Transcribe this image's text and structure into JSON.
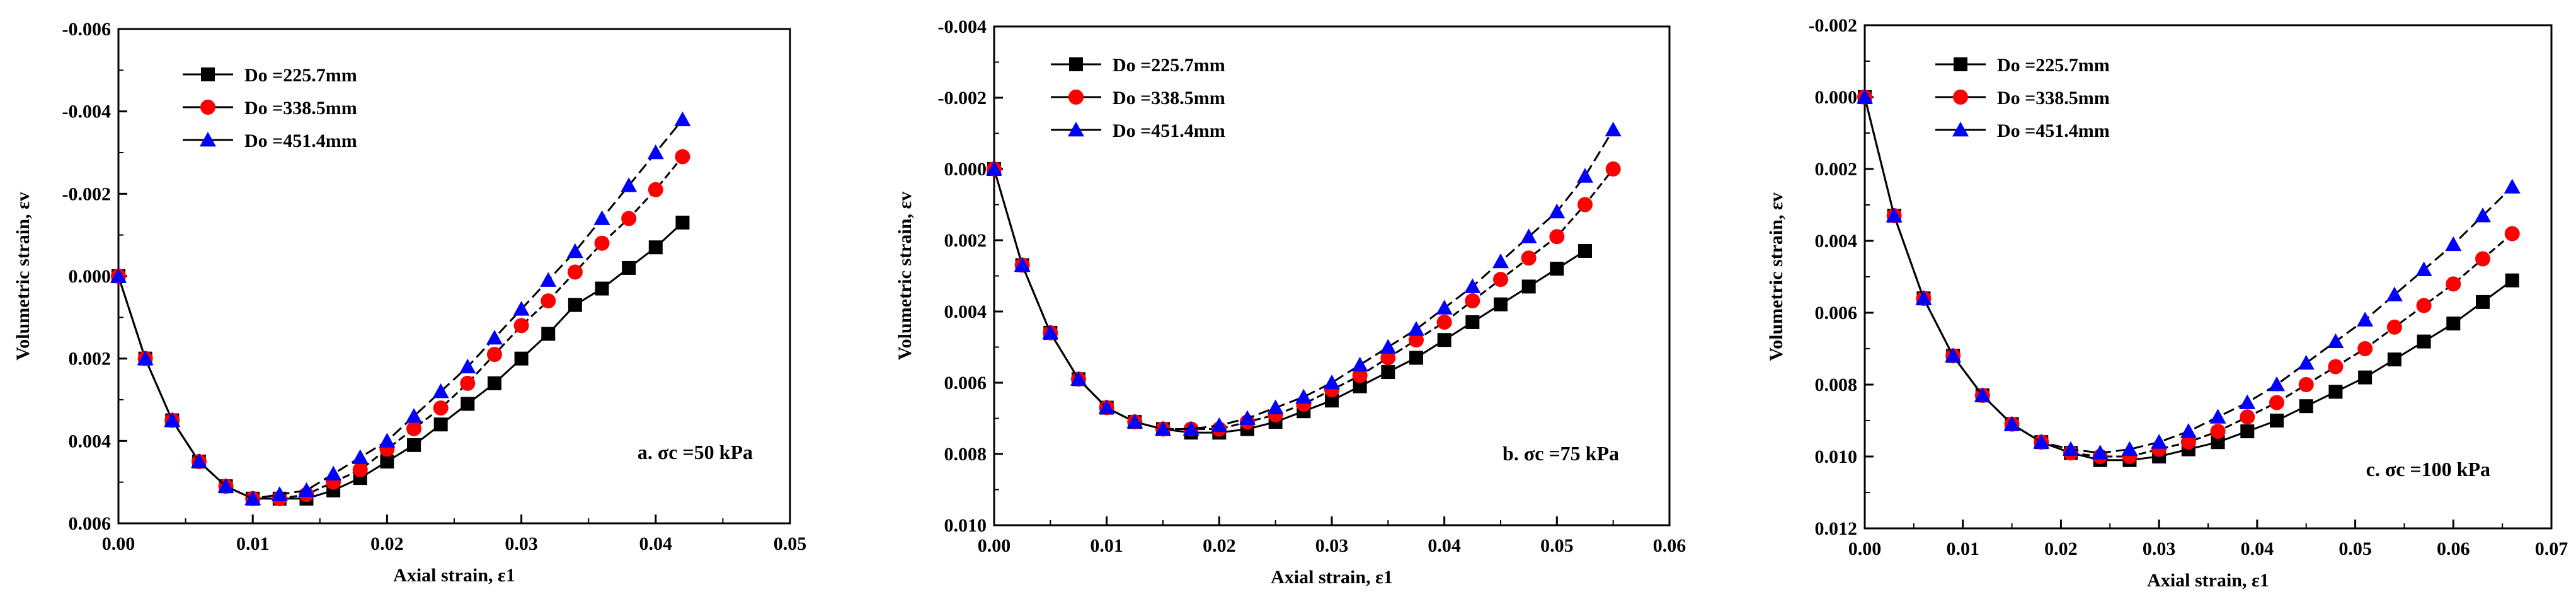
{
  "chart_data": [
    {
      "type": "line",
      "xlabel": "Axial strain, ε1",
      "ylabel": "Volumetric strain, εv",
      "xlim": [
        0,
        0.05
      ],
      "ylim": [
        -0.006,
        0.006
      ],
      "y_inverted": true,
      "xticks": [
        "0.00",
        "0.01",
        "0.02",
        "0.03",
        "0.04",
        "0.05"
      ],
      "xtick_values": [
        0,
        0.01,
        0.02,
        0.03,
        0.04,
        0.05
      ],
      "yticks": [
        "-0.006",
        "-0.004",
        "-0.002",
        "0.000",
        "0.002",
        "0.004",
        "0.006"
      ],
      "ytick_values": [
        -0.006,
        -0.004,
        -0.002,
        0,
        0.002,
        0.004,
        0.006
      ],
      "annotation": "a. σc =50 kPa",
      "legend_position": "top-left",
      "series": [
        {
          "name": "Do =225.7mm",
          "marker": "square",
          "color": "#000000",
          "x": [
            0,
            0.002,
            0.004,
            0.006,
            0.008,
            0.01,
            0.012,
            0.014,
            0.016,
            0.018,
            0.02,
            0.022,
            0.024,
            0.026,
            0.028,
            0.03,
            0.032,
            0.034,
            0.036,
            0.038,
            0.04,
            0.042
          ],
          "y": [
            0,
            0.002,
            0.0035,
            0.0045,
            0.0051,
            0.0054,
            0.0054,
            0.0054,
            0.0052,
            0.0049,
            0.0045,
            0.0041,
            0.0036,
            0.0031,
            0.0026,
            0.002,
            0.0014,
            0.0007,
            0.0003,
            -0.0002,
            -0.0007,
            -0.0013
          ]
        },
        {
          "name": "Do =338.5mm",
          "marker": "circle",
          "color": "#ff0000",
          "x": [
            0,
            0.002,
            0.004,
            0.006,
            0.008,
            0.01,
            0.012,
            0.014,
            0.016,
            0.018,
            0.02,
            0.022,
            0.024,
            0.026,
            0.028,
            0.03,
            0.032,
            0.034,
            0.036,
            0.038,
            0.04,
            0.042
          ],
          "y": [
            0,
            0.002,
            0.0035,
            0.0045,
            0.0051,
            0.0054,
            0.0054,
            0.0053,
            0.005,
            0.0047,
            0.0042,
            0.0037,
            0.0032,
            0.0026,
            0.0019,
            0.0012,
            0.0006,
            -0.0001,
            -0.0008,
            -0.0014,
            -0.0021,
            -0.0029
          ]
        },
        {
          "name": "Do =451.4mm",
          "marker": "triangle",
          "color": "#0000ff",
          "x": [
            0,
            0.002,
            0.004,
            0.006,
            0.008,
            0.01,
            0.012,
            0.014,
            0.016,
            0.018,
            0.02,
            0.022,
            0.024,
            0.026,
            0.028,
            0.03,
            0.032,
            0.034,
            0.036,
            0.038,
            0.04,
            0.042
          ],
          "y": [
            0,
            0.002,
            0.0035,
            0.0045,
            0.0051,
            0.0054,
            0.0053,
            0.0052,
            0.0048,
            0.0044,
            0.004,
            0.0034,
            0.0028,
            0.0022,
            0.0015,
            0.0008,
            0.0001,
            -0.0006,
            -0.0014,
            -0.0022,
            -0.003,
            -0.0038
          ]
        }
      ]
    },
    {
      "type": "line",
      "xlabel": "Axial strain, ε1",
      "ylabel": "Volumetric strain, εv",
      "xlim": [
        0,
        0.06
      ],
      "ylim": [
        -0.004,
        0.01
      ],
      "y_inverted": true,
      "xticks": [
        "0.00",
        "0.01",
        "0.02",
        "0.03",
        "0.04",
        "0.05",
        "0.06"
      ],
      "xtick_values": [
        0,
        0.01,
        0.02,
        0.03,
        0.04,
        0.05,
        0.06
      ],
      "yticks": [
        "-0.004",
        "-0.002",
        "0.000",
        "0.002",
        "0.004",
        "0.006",
        "0.008",
        "0.010"
      ],
      "ytick_values": [
        -0.004,
        -0.002,
        0,
        0.002,
        0.004,
        0.006,
        0.008,
        0.01
      ],
      "annotation": "b. σc =75 kPa",
      "legend_position": "top-left",
      "series": [
        {
          "name": "Do =225.7mm",
          "marker": "square",
          "color": "#000000",
          "x": [
            0,
            0.0025,
            0.005,
            0.0075,
            0.01,
            0.0125,
            0.015,
            0.0175,
            0.02,
            0.0225,
            0.025,
            0.0275,
            0.03,
            0.0325,
            0.035,
            0.0375,
            0.04,
            0.0425,
            0.045,
            0.0475,
            0.05,
            0.0525
          ],
          "y": [
            0,
            0.0027,
            0.0046,
            0.0059,
            0.0067,
            0.0071,
            0.0073,
            0.0074,
            0.0074,
            0.0073,
            0.0071,
            0.0068,
            0.0065,
            0.0061,
            0.0057,
            0.0053,
            0.0048,
            0.0043,
            0.0038,
            0.0033,
            0.0028,
            0.0023
          ]
        },
        {
          "name": "Do =338.5mm",
          "marker": "circle",
          "color": "#ff0000",
          "x": [
            0,
            0.0025,
            0.005,
            0.0075,
            0.01,
            0.0125,
            0.015,
            0.0175,
            0.02,
            0.0225,
            0.025,
            0.0275,
            0.03,
            0.0325,
            0.035,
            0.0375,
            0.04,
            0.0425,
            0.045,
            0.0475,
            0.05,
            0.0525,
            0.055
          ],
          "y": [
            0,
            0.0027,
            0.0046,
            0.0059,
            0.0067,
            0.0071,
            0.0073,
            0.0073,
            0.0073,
            0.0071,
            0.0069,
            0.0066,
            0.0062,
            0.0058,
            0.0053,
            0.0048,
            0.0043,
            0.0037,
            0.0031,
            0.0025,
            0.0019,
            0.001,
            0.0
          ]
        },
        {
          "name": "Do =451.4mm",
          "marker": "triangle",
          "color": "#0000ff",
          "x": [
            0,
            0.0025,
            0.005,
            0.0075,
            0.01,
            0.0125,
            0.015,
            0.0175,
            0.02,
            0.0225,
            0.025,
            0.0275,
            0.03,
            0.0325,
            0.035,
            0.0375,
            0.04,
            0.0425,
            0.045,
            0.0475,
            0.05,
            0.0525,
            0.055
          ],
          "y": [
            0,
            0.0027,
            0.0046,
            0.0059,
            0.0067,
            0.0071,
            0.0073,
            0.0073,
            0.0072,
            0.007,
            0.0067,
            0.0064,
            0.006,
            0.0055,
            0.005,
            0.0045,
            0.0039,
            0.0033,
            0.0026,
            0.0019,
            0.0012,
            0.0002,
            -0.0011
          ]
        }
      ]
    },
    {
      "type": "line",
      "xlabel": "Axial strain, ε1",
      "ylabel": "Volumetric strain, εv",
      "xlim": [
        0,
        0.07
      ],
      "ylim": [
        -0.002,
        0.012
      ],
      "y_inverted": true,
      "xticks": [
        "0.00",
        "0.01",
        "0.02",
        "0.03",
        "0.04",
        "0.05",
        "0.06",
        "0.07"
      ],
      "xtick_values": [
        0,
        0.01,
        0.02,
        0.03,
        0.04,
        0.05,
        0.06,
        0.07
      ],
      "yticks": [
        "-0.002",
        "0.000",
        "0.002",
        "0.004",
        "0.006",
        "0.008",
        "0.010",
        "0.012"
      ],
      "ytick_values": [
        -0.002,
        0,
        0.002,
        0.004,
        0.006,
        0.008,
        0.01,
        0.012
      ],
      "annotation": "c. σc =100 kPa",
      "legend_position": "top-left",
      "series": [
        {
          "name": "Do =225.7mm",
          "marker": "square",
          "color": "#000000",
          "x": [
            0,
            0.003,
            0.006,
            0.009,
            0.012,
            0.015,
            0.018,
            0.021,
            0.024,
            0.027,
            0.03,
            0.033,
            0.036,
            0.039,
            0.042,
            0.045,
            0.048,
            0.051,
            0.054,
            0.057,
            0.06,
            0.063,
            0.066
          ],
          "y": [
            0,
            0.0033,
            0.0056,
            0.0072,
            0.0083,
            0.0091,
            0.0096,
            0.0099,
            0.0101,
            0.0101,
            0.01,
            0.0098,
            0.0096,
            0.0093,
            0.009,
            0.0086,
            0.0082,
            0.0078,
            0.0073,
            0.0068,
            0.0063,
            0.0057,
            0.0051
          ]
        },
        {
          "name": "Do =338.5mm",
          "marker": "circle",
          "color": "#ff0000",
          "x": [
            0,
            0.003,
            0.006,
            0.009,
            0.012,
            0.015,
            0.018,
            0.021,
            0.024,
            0.027,
            0.03,
            0.033,
            0.036,
            0.039,
            0.042,
            0.045,
            0.048,
            0.051,
            0.054,
            0.057,
            0.06,
            0.063,
            0.066
          ],
          "y": [
            0,
            0.0033,
            0.0056,
            0.0072,
            0.0083,
            0.0091,
            0.0096,
            0.0099,
            0.01,
            0.01,
            0.0098,
            0.0096,
            0.0093,
            0.0089,
            0.0085,
            0.008,
            0.0075,
            0.007,
            0.0064,
            0.0058,
            0.0052,
            0.0045,
            0.0038
          ]
        },
        {
          "name": "Do =451.4mm",
          "marker": "triangle",
          "color": "#0000ff",
          "x": [
            0,
            0.003,
            0.006,
            0.009,
            0.012,
            0.015,
            0.018,
            0.021,
            0.024,
            0.027,
            0.03,
            0.033,
            0.036,
            0.039,
            0.042,
            0.045,
            0.048,
            0.051,
            0.054,
            0.057,
            0.06,
            0.063,
            0.066
          ],
          "y": [
            0,
            0.0033,
            0.0056,
            0.0072,
            0.0083,
            0.0091,
            0.0096,
            0.0098,
            0.0099,
            0.0098,
            0.0096,
            0.0093,
            0.0089,
            0.0085,
            0.008,
            0.0074,
            0.0068,
            0.0062,
            0.0055,
            0.0048,
            0.0041,
            0.0033,
            0.0025
          ]
        }
      ]
    }
  ]
}
